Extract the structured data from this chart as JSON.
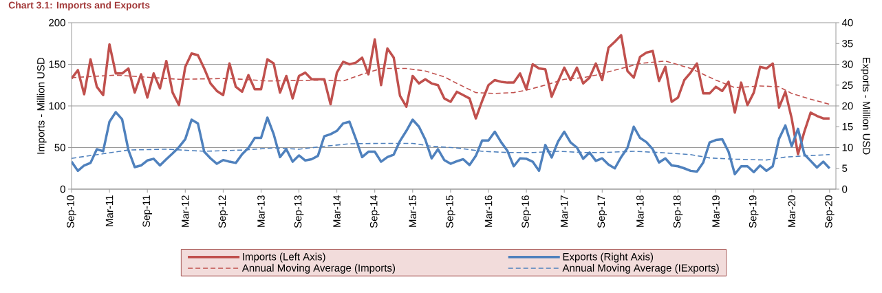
{
  "chart_data": {
    "type": "line",
    "title": "Chart 3.1: Imports and Exports",
    "ylabel": "Imports - Million USD",
    "y2label": "Exports - Million USD",
    "x": [
      "2010-09",
      "2010-10",
      "2010-11",
      "2010-12",
      "2011-01",
      "2011-02",
      "2011-03",
      "2011-04",
      "2011-05",
      "2011-06",
      "2011-07",
      "2011-08",
      "2011-09",
      "2011-10",
      "2011-11",
      "2011-12",
      "2012-01",
      "2012-02",
      "2012-03",
      "2012-04",
      "2012-05",
      "2012-06",
      "2012-07",
      "2012-08",
      "2012-09",
      "2012-10",
      "2012-11",
      "2012-12",
      "2013-01",
      "2013-02",
      "2013-03",
      "2013-04",
      "2013-05",
      "2013-06",
      "2013-07",
      "2013-08",
      "2013-09",
      "2013-10",
      "2013-11",
      "2013-12",
      "2014-01",
      "2014-02",
      "2014-03",
      "2014-04",
      "2014-05",
      "2014-06",
      "2014-07",
      "2014-08",
      "2014-09",
      "2014-10",
      "2014-11",
      "2014-12",
      "2015-01",
      "2015-02",
      "2015-03",
      "2015-04",
      "2015-05",
      "2015-06",
      "2015-07",
      "2015-08",
      "2015-09",
      "2015-10",
      "2015-11",
      "2015-12",
      "2016-01",
      "2016-02",
      "2016-03",
      "2016-04",
      "2016-05",
      "2016-06",
      "2016-07",
      "2016-08",
      "2016-09",
      "2016-10",
      "2016-11",
      "2016-12",
      "2017-01",
      "2017-02",
      "2017-03",
      "2017-04",
      "2017-05",
      "2017-06",
      "2017-07",
      "2017-08",
      "2017-09",
      "2017-10",
      "2017-11",
      "2017-12",
      "2018-01",
      "2018-02",
      "2018-03",
      "2018-04",
      "2018-05",
      "2018-06",
      "2018-07",
      "2018-08",
      "2018-09",
      "2018-10",
      "2018-11",
      "2018-12",
      "2019-01",
      "2019-02",
      "2019-03",
      "2019-04",
      "2019-05",
      "2019-06",
      "2019-07",
      "2019-08",
      "2019-09",
      "2019-10",
      "2019-11",
      "2019-12",
      "2020-01",
      "2020-02",
      "2020-03",
      "2020-04",
      "2020-05",
      "2020-06",
      "2020-07",
      "2020-08",
      "2020-09"
    ],
    "series": [
      {
        "name": "Imports (Left Axis)",
        "color": "#c0504d",
        "line_style": "solid",
        "values": [
          133,
          143,
          114,
          156,
          123,
          113,
          174,
          139,
          139,
          145,
          116,
          138,
          110,
          139,
          121,
          154,
          116,
          101,
          147,
          163,
          161,
          145,
          127,
          118,
          113,
          151,
          123,
          117,
          137,
          120,
          120,
          156,
          151,
          116,
          136,
          109,
          136,
          140,
          132,
          132,
          132,
          102,
          140,
          153,
          150,
          152,
          158,
          138,
          180,
          125,
          169,
          158,
          112,
          99,
          136,
          127,
          132,
          127,
          125,
          109,
          105,
          117,
          113,
          109,
          85,
          106,
          125,
          131,
          129,
          128,
          128,
          139,
          120,
          150,
          145,
          144,
          111,
          129,
          146,
          131,
          146,
          127,
          134,
          151,
          131,
          170,
          177,
          185,
          142,
          134,
          159,
          164,
          166,
          130,
          147,
          105,
          110,
          131,
          140,
          151,
          115,
          115,
          123,
          118,
          129,
          92,
          128,
          101,
          116,
          147,
          145,
          151,
          98,
          117,
          85,
          42,
          69,
          92,
          88,
          85,
          85
        ]
      },
      {
        "name": "Exports (Right Axis)",
        "color": "#4f81bd",
        "line_style": "solid",
        "axis": "y2",
        "values": [
          6.6,
          4.4,
          5.7,
          6.3,
          9.6,
          9.1,
          16.2,
          18.5,
          16.8,
          9.4,
          5.3,
          5.7,
          6.9,
          7.3,
          5.7,
          7.2,
          8.6,
          10.1,
          12.0,
          16.7,
          15.8,
          9.0,
          7.4,
          6.1,
          7.0,
          6.6,
          6.3,
          8.4,
          9.9,
          12.3,
          12.3,
          17.2,
          13.2,
          7.7,
          9.6,
          6.6,
          8.1,
          6.9,
          7.2,
          8.0,
          12.7,
          13.2,
          14.0,
          15.8,
          16.2,
          12.1,
          7.7,
          9.0,
          9.0,
          6.6,
          7.7,
          8.3,
          11.6,
          14.0,
          16.7,
          15.0,
          11.9,
          7.4,
          9.6,
          7.0,
          6.1,
          6.7,
          7.2,
          5.8,
          8.0,
          11.7,
          11.7,
          13.8,
          11.3,
          9.2,
          5.5,
          7.4,
          7.3,
          6.6,
          4.4,
          10.6,
          7.6,
          11.4,
          13.8,
          11.2,
          10.0,
          7.3,
          8.8,
          6.8,
          7.4,
          5.9,
          5.0,
          7.7,
          9.9,
          15.0,
          12.3,
          11.3,
          9.6,
          6.4,
          7.4,
          5.7,
          5.5,
          5.0,
          4.4,
          4.2,
          6.4,
          11.2,
          11.8,
          12.0,
          9.0,
          3.6,
          5.5,
          5.5,
          4.1,
          5.7,
          4.4,
          5.5,
          12.1,
          15.3,
          10.3,
          14.5,
          8.4,
          6.8,
          5.2,
          6.6,
          5.0
        ]
      },
      {
        "name": "Annual Moving Average (Imports)",
        "color": "#c0504d",
        "line_style": "dashed",
        "x": [
          "2010-09",
          "2011-04",
          "2012-02",
          "2012-10",
          "2013-04",
          "2014-01",
          "2014-04",
          "2014-07",
          "2014-10",
          "2015-02",
          "2015-05",
          "2015-08",
          "2015-10",
          "2016-01",
          "2016-04",
          "2016-07",
          "2016-09",
          "2016-12",
          "2017-03",
          "2017-06",
          "2017-08",
          "2017-12",
          "2018-03",
          "2018-07",
          "2018-11",
          "2019-03",
          "2019-06",
          "2019-10",
          "2020-01",
          "2020-03",
          "2020-06",
          "2020-09"
        ],
        "values": [
          134,
          137,
          132,
          133,
          130,
          131,
          130,
          138,
          145,
          145,
          142,
          135,
          127,
          116,
          115,
          116,
          119,
          125,
          132,
          134,
          137,
          145,
          151,
          154,
          145,
          131,
          122,
          124,
          123,
          115,
          108,
          102
        ]
      },
      {
        "name": "Annual Moving Average (IExports)",
        "color": "#4f81bd",
        "line_style": "dashed",
        "axis": "y2",
        "x": [
          "2010-09",
          "2011-02",
          "2011-06",
          "2011-12",
          "2012-06",
          "2012-12",
          "2013-05",
          "2013-09",
          "2014-01",
          "2014-05",
          "2014-10",
          "2015-03",
          "2015-06",
          "2015-10",
          "2016-02",
          "2016-06",
          "2016-10",
          "2017-02",
          "2017-06",
          "2017-09",
          "2018-02",
          "2018-06",
          "2018-11",
          "2019-02",
          "2019-06",
          "2019-11",
          "2020-02",
          "2020-05",
          "2020-09"
        ],
        "values": [
          7.4,
          8.5,
          9.4,
          9.6,
          9.1,
          9.4,
          9.9,
          9.6,
          10.3,
          10.9,
          11.0,
          11.0,
          10.3,
          9.9,
          9.1,
          8.8,
          8.8,
          9.1,
          8.8,
          8.8,
          9.1,
          8.8,
          8.3,
          7.5,
          7.2,
          7.0,
          7.7,
          8.0,
          8.3
        ]
      }
    ],
    "xlim": [
      "2010-09",
      "2020-10"
    ],
    "xticks": [
      {
        "value": "2010-09",
        "label": "Sep-10"
      },
      {
        "value": "2011-03",
        "label": "Mar-11"
      },
      {
        "value": "2011-09",
        "label": "Sep-11"
      },
      {
        "value": "2012-03",
        "label": "Mar-12"
      },
      {
        "value": "2012-09",
        "label": "Sep-12"
      },
      {
        "value": "2013-03",
        "label": "Mar-13"
      },
      {
        "value": "2013-09",
        "label": "Sep-13"
      },
      {
        "value": "2014-03",
        "label": "Mar-14"
      },
      {
        "value": "2014-09",
        "label": "Sep-14"
      },
      {
        "value": "2015-03",
        "label": "Mar-15"
      },
      {
        "value": "2015-09",
        "label": "Sep-15"
      },
      {
        "value": "2016-03",
        "label": "Mar-16"
      },
      {
        "value": "2016-09",
        "label": "Sep-16"
      },
      {
        "value": "2017-03",
        "label": "Mar-17"
      },
      {
        "value": "2017-09",
        "label": "Sep-17"
      },
      {
        "value": "2018-03",
        "label": "Mar-18"
      },
      {
        "value": "2018-09",
        "label": "Sep-18"
      },
      {
        "value": "2019-03",
        "label": "Mar-19"
      },
      {
        "value": "2019-09",
        "label": "Sep-19"
      },
      {
        "value": "2020-03",
        "label": "Mar-20"
      },
      {
        "value": "2020-09",
        "label": "Sep-20"
      }
    ],
    "ylim": [
      0,
      200
    ],
    "yticks": [
      0,
      50,
      100,
      150,
      200
    ],
    "y2lim": [
      0,
      40
    ],
    "y2ticks": [
      0,
      5,
      10,
      15,
      20,
      25,
      30,
      35,
      40
    ],
    "grid": "y",
    "legend": "bottom"
  }
}
